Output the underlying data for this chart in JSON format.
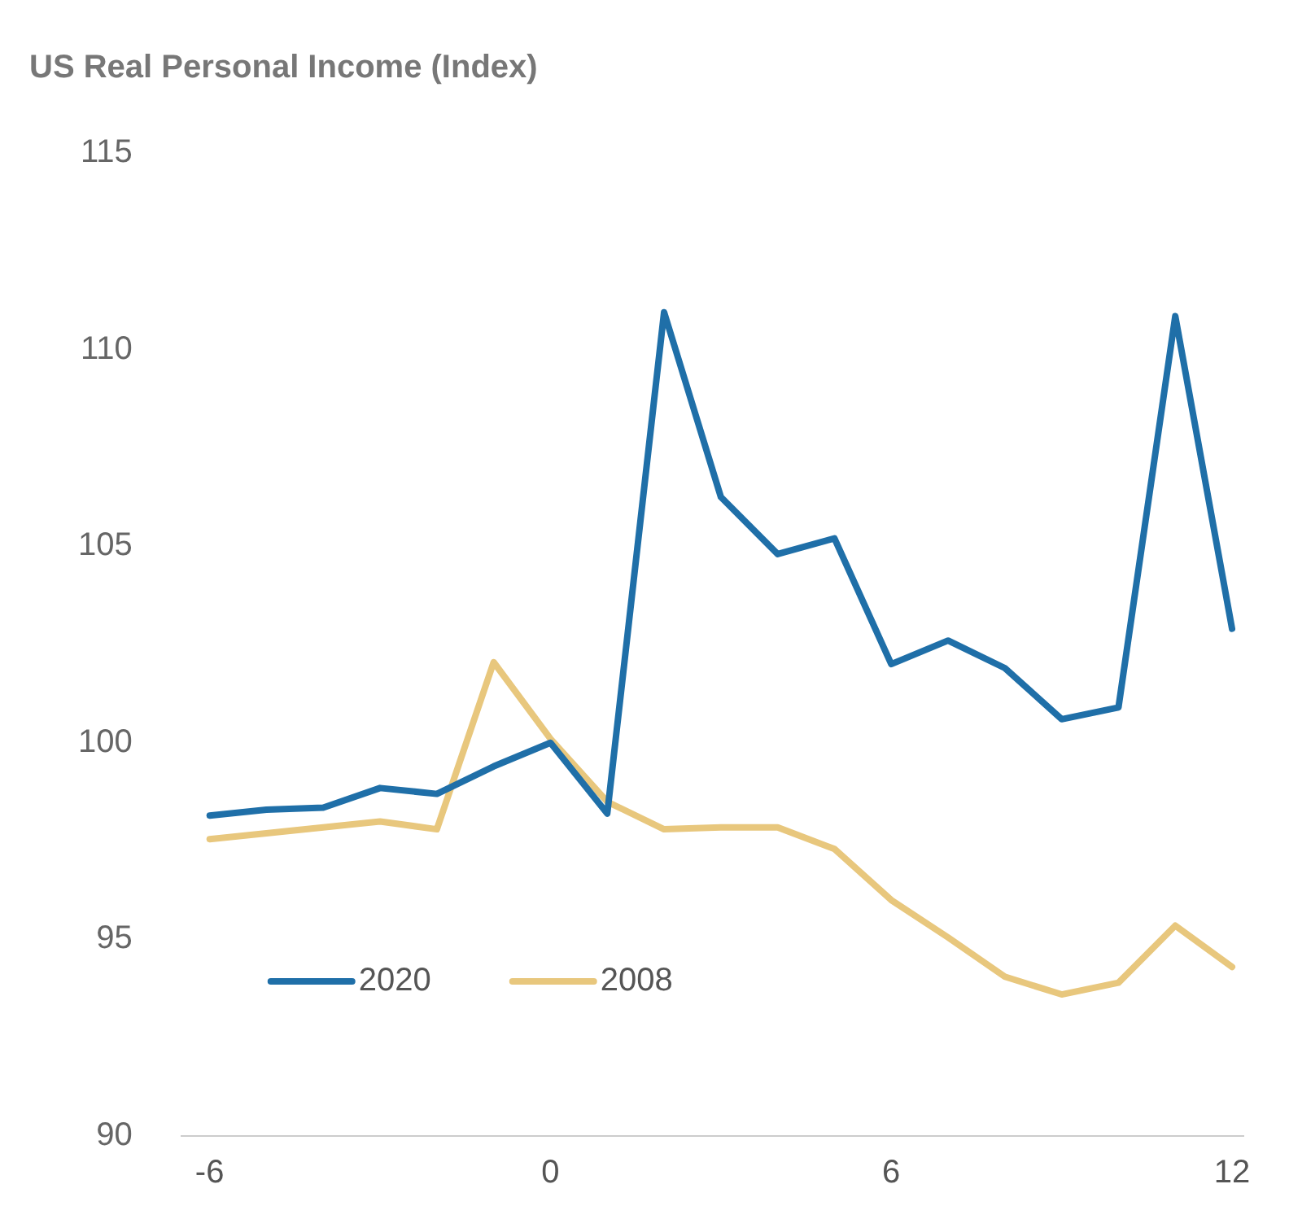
{
  "chart_data": {
    "type": "line",
    "title": "US Real Personal Income (Index)",
    "x": [
      -6,
      -5,
      -4,
      -3,
      -2,
      -1,
      0,
      1,
      2,
      3,
      4,
      5,
      6,
      7,
      8,
      9,
      10,
      11,
      12
    ],
    "series": [
      {
        "name": "2020",
        "color": "#1f6fa8",
        "values": [
          98.15,
          98.3,
          98.35,
          98.85,
          98.7,
          99.4,
          100,
          98.2,
          110.95,
          106.25,
          104.8,
          105.2,
          102,
          102.6,
          101.9,
          100.6,
          100.9,
          110.85,
          102.9
        ]
      },
      {
        "name": "2008",
        "color": "#e8c77d",
        "values": [
          97.55,
          97.7,
          97.85,
          98,
          97.8,
          102.05,
          100.1,
          98.5,
          97.8,
          97.85,
          97.85,
          97.3,
          96,
          95.05,
          94.05,
          93.6,
          93.9,
          95.35,
          94.3
        ]
      }
    ],
    "xlim": [
      -6.5,
      12.2
    ],
    "xticks": [
      -6,
      0,
      6,
      12
    ],
    "ylim": [
      90,
      115
    ],
    "yticks": [
      90,
      95,
      100,
      105,
      110,
      115
    ],
    "grid": false,
    "legend": "bottom left",
    "marker": "none",
    "line_style": "solid"
  }
}
